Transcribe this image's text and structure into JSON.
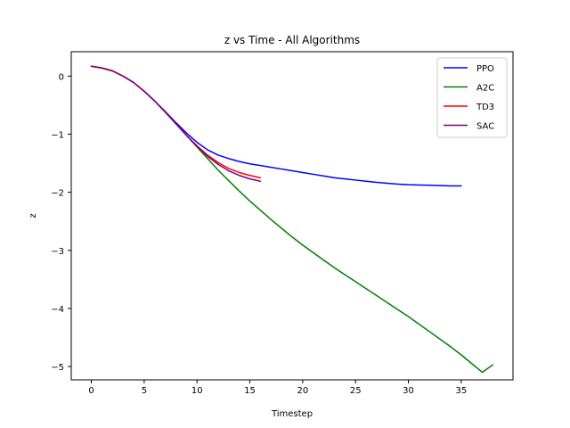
{
  "chart_data": {
    "type": "line",
    "title": "z vs Time - All Algorithms",
    "xlabel": "Timestep",
    "ylabel": "z",
    "xlim": [
      -1.9,
      39.9
    ],
    "ylim": [
      -5.23,
      0.42
    ],
    "xticks": [
      0,
      5,
      10,
      15,
      20,
      25,
      30,
      35
    ],
    "yticks": [
      0,
      -1,
      -2,
      -3,
      -4,
      -5
    ],
    "grid": false,
    "legend_position": "top-right",
    "series": [
      {
        "name": "PPO",
        "color": "#0000ff",
        "x": [
          0,
          1,
          2,
          3,
          4,
          5,
          6,
          7,
          8,
          9,
          10,
          11,
          12,
          13,
          14,
          15,
          16,
          17,
          18,
          19,
          20,
          21,
          22,
          23,
          24,
          25,
          26,
          27,
          28,
          29,
          30,
          31,
          32,
          33,
          34,
          35
        ],
        "y": [
          0.17,
          0.14,
          0.09,
          0.0,
          -0.11,
          -0.26,
          -0.43,
          -0.61,
          -0.8,
          -0.98,
          -1.14,
          -1.27,
          -1.36,
          -1.42,
          -1.47,
          -1.51,
          -1.54,
          -1.57,
          -1.6,
          -1.63,
          -1.66,
          -1.69,
          -1.72,
          -1.75,
          -1.77,
          -1.79,
          -1.81,
          -1.83,
          -1.845,
          -1.86,
          -1.87,
          -1.875,
          -1.88,
          -1.885,
          -1.89,
          -1.89
        ]
      },
      {
        "name": "A2C",
        "color": "#008000",
        "x": [
          0,
          1,
          2,
          3,
          4,
          5,
          6,
          7,
          8,
          9,
          10,
          11,
          12,
          13,
          14,
          15,
          16,
          17,
          18,
          19,
          20,
          21,
          22,
          23,
          24,
          25,
          26,
          27,
          28,
          29,
          30,
          31,
          32,
          33,
          34,
          35,
          36,
          37,
          38
        ],
        "y": [
          0.17,
          0.14,
          0.09,
          0.0,
          -0.11,
          -0.26,
          -0.43,
          -0.62,
          -0.82,
          -1.02,
          -1.22,
          -1.42,
          -1.62,
          -1.8,
          -1.98,
          -2.15,
          -2.31,
          -2.47,
          -2.62,
          -2.77,
          -2.91,
          -3.04,
          -3.17,
          -3.3,
          -3.42,
          -3.54,
          -3.66,
          -3.78,
          -3.9,
          -4.02,
          -4.14,
          -4.27,
          -4.4,
          -4.53,
          -4.66,
          -4.8,
          -4.95,
          -5.1,
          -4.97
        ]
      },
      {
        "name": "TD3",
        "color": "#ff0000",
        "x": [
          0,
          1,
          2,
          3,
          4,
          5,
          6,
          7,
          8,
          9,
          10,
          11,
          12,
          13,
          14,
          15,
          16
        ],
        "y": [
          0.17,
          0.14,
          0.09,
          0.0,
          -0.11,
          -0.26,
          -0.43,
          -0.62,
          -0.82,
          -1.02,
          -1.2,
          -1.36,
          -1.49,
          -1.59,
          -1.66,
          -1.71,
          -1.75
        ]
      },
      {
        "name": "SAC",
        "color": "#800080",
        "x": [
          0,
          1,
          2,
          3,
          4,
          5,
          6,
          7,
          8,
          9,
          10,
          11,
          12,
          13,
          14,
          15,
          16
        ],
        "y": [
          0.17,
          0.14,
          0.09,
          0.0,
          -0.11,
          -0.26,
          -0.43,
          -0.62,
          -0.82,
          -1.02,
          -1.21,
          -1.38,
          -1.52,
          -1.63,
          -1.71,
          -1.77,
          -1.81
        ]
      }
    ]
  }
}
